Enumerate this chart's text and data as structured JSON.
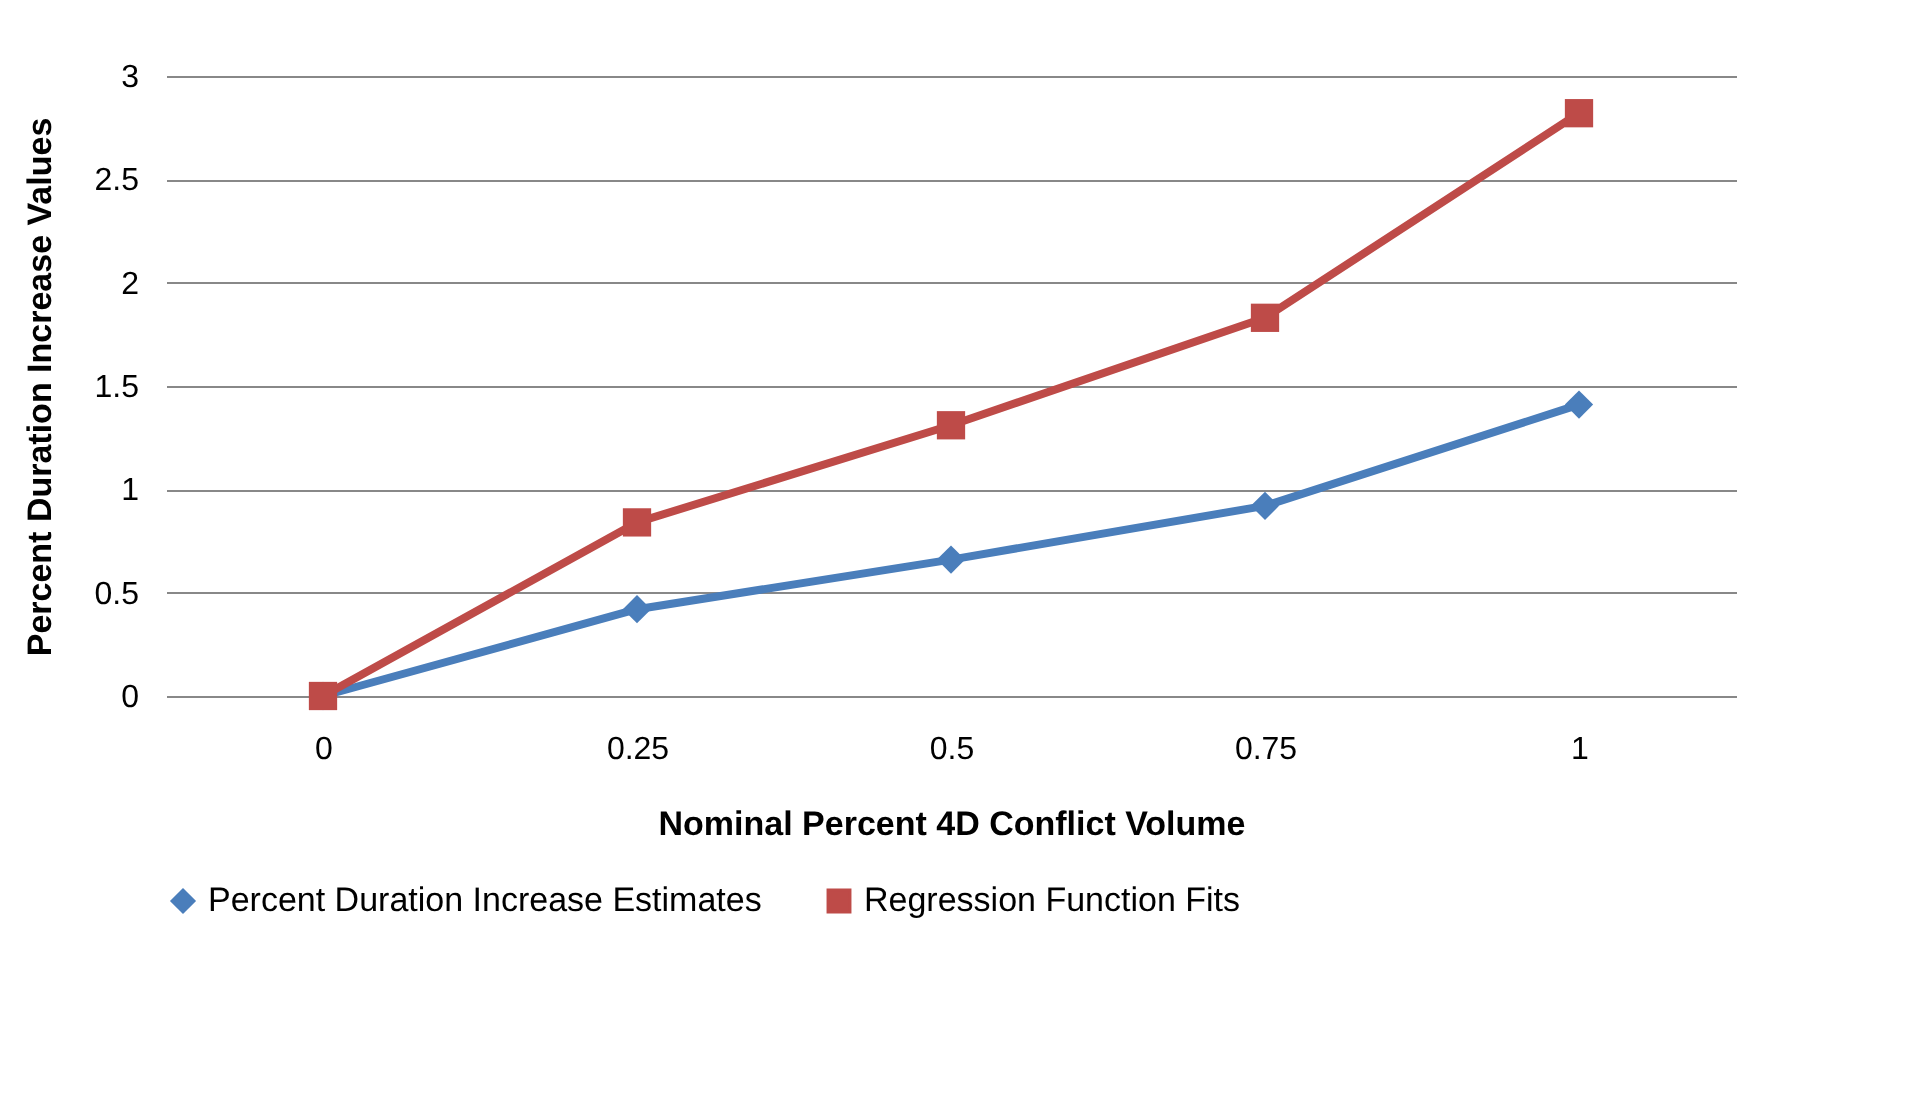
{
  "chart_data": {
    "type": "line",
    "xlabel": "Nominal Percent 4D Conflict Volume",
    "ylabel": "Percent Duration Increase Values",
    "categories": [
      "0",
      "0.25",
      "0.5",
      "0.75",
      "1"
    ],
    "series": [
      {
        "name": "Percent Duration Increase Estimates",
        "color": "#4a7ebb",
        "marker": "diamond",
        "values": [
          0,
          0.42,
          0.66,
          0.92,
          1.41
        ]
      },
      {
        "name": "Regression Function Fits",
        "color": "#be4b48",
        "marker": "square",
        "values": [
          0,
          0.84,
          1.31,
          1.83,
          2.82
        ]
      }
    ],
    "ylim": [
      0,
      3
    ],
    "yticks": [
      0,
      0.5,
      1,
      1.5,
      2,
      2.5,
      3
    ],
    "grid": "y",
    "legend": "bottom",
    "line_style": "solid"
  }
}
